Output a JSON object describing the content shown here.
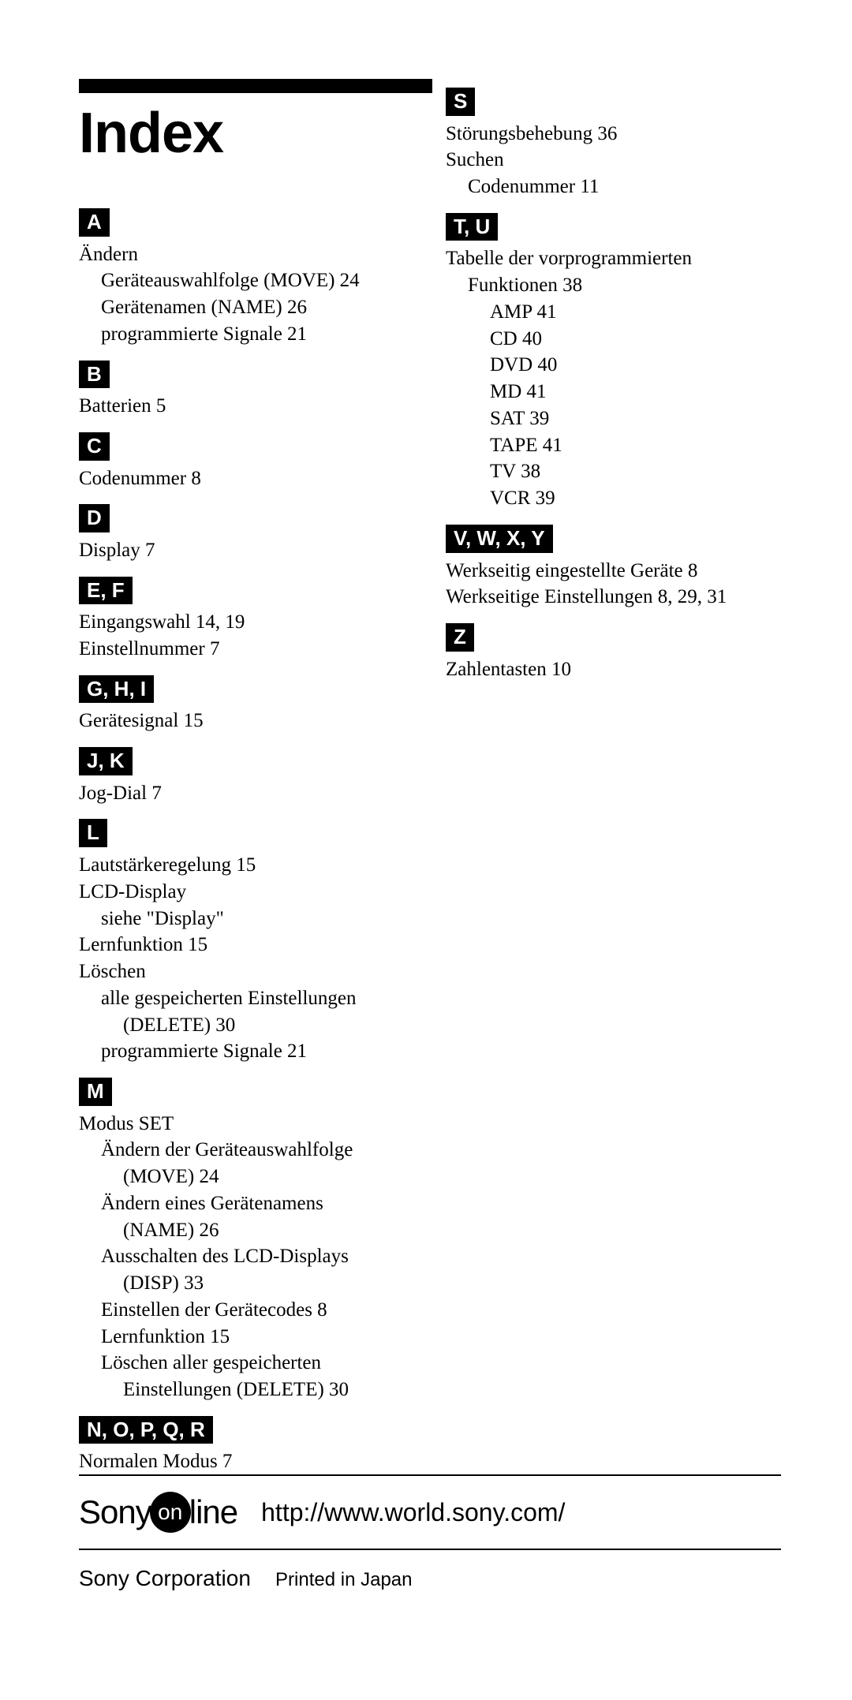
{
  "title": "Index",
  "left": {
    "A": {
      "label": "A",
      "items": [
        {
          "text": "Ändern",
          "indent": 0
        },
        {
          "text": "Geräteauswahlfolge (MOVE) 24",
          "indent": 1
        },
        {
          "text": "Gerätenamen (NAME) 26",
          "indent": 1
        },
        {
          "text": "programmierte Signale  21",
          "indent": 1
        }
      ]
    },
    "B": {
      "label": "B",
      "items": [
        {
          "text": "Batterien  5",
          "indent": 0
        }
      ]
    },
    "C": {
      "label": "C",
      "items": [
        {
          "text": "Codenummer 8",
          "indent": 0
        }
      ]
    },
    "D": {
      "label": "D",
      "items": [
        {
          "text": "Display 7",
          "indent": 0
        }
      ]
    },
    "EF": {
      "label": "E, F",
      "items": [
        {
          "text": "Eingangswahl  14, 19",
          "indent": 0
        },
        {
          "text": "Einstellnummer 7",
          "indent": 0
        }
      ]
    },
    "GHI": {
      "label": "G, H, I",
      "items": [
        {
          "text": "Gerätesignal 15",
          "indent": 0
        }
      ]
    },
    "JK": {
      "label": "J, K",
      "items": [
        {
          "text": "Jog-Dial 7",
          "indent": 0
        }
      ]
    },
    "L": {
      "label": "L",
      "items": [
        {
          "text": "Lautstärkeregelung  15",
          "indent": 0
        },
        {
          "text": "LCD-Display",
          "indent": 0
        },
        {
          "text": "siehe \"Display\"",
          "indent": 1
        },
        {
          "text": "Lernfunktion  15",
          "indent": 0
        },
        {
          "text": "Löschen",
          "indent": 0
        },
        {
          "text": "alle gespeicherten Einstellungen",
          "indent": 1
        },
        {
          "text": "(DELETE) 30",
          "indent": 2
        },
        {
          "text": "programmierte Signale  21",
          "indent": 1
        }
      ]
    },
    "M": {
      "label": "M",
      "items": [
        {
          "text": "Modus SET",
          "indent": 0
        },
        {
          "text": "Ändern der Geräteauswahlfolge",
          "indent": 1
        },
        {
          "text": "(MOVE) 24",
          "indent": 2
        },
        {
          "text": "Ändern eines Gerätenamens",
          "indent": 1
        },
        {
          "text": "(NAME) 26",
          "indent": 2
        },
        {
          "text": "Ausschalten des LCD-Displays",
          "indent": 1
        },
        {
          "text": "(DISP) 33",
          "indent": 2
        },
        {
          "text": "Einstellen der Gerätecodes 8",
          "indent": 1
        },
        {
          "text": "Lernfunktion 15",
          "indent": 1
        },
        {
          "text": "Löschen aller gespeicherten",
          "indent": 1
        },
        {
          "text": "Einstellungen (DELETE) 30",
          "indent": 2
        }
      ]
    },
    "NOPQR": {
      "label": "N, O, P, Q, R",
      "items": [
        {
          "text": "Normalen Modus 7",
          "indent": 0
        }
      ]
    }
  },
  "right": {
    "S": {
      "label": "S",
      "items": [
        {
          "text": "Störungsbehebung  36",
          "indent": 0
        },
        {
          "text": "Suchen",
          "indent": 0
        },
        {
          "text": "Codenummer 11",
          "indent": 1
        }
      ]
    },
    "TU": {
      "label": "T, U",
      "items": [
        {
          "text": "Tabelle der vorprogrammierten",
          "indent": 0
        },
        {
          "text": "Funktionen 38",
          "indent": 1
        },
        {
          "text": "AMP 41",
          "indent": 2
        },
        {
          "text": "CD 40",
          "indent": 2
        },
        {
          "text": "DVD 40",
          "indent": 2
        },
        {
          "text": "MD 41",
          "indent": 2
        },
        {
          "text": "SAT 39",
          "indent": 2
        },
        {
          "text": "TAPE 41",
          "indent": 2
        },
        {
          "text": "TV 38",
          "indent": 2
        },
        {
          "text": "VCR 39",
          "indent": 2
        }
      ]
    },
    "VWXY": {
      "label": "V, W, X, Y",
      "items": [
        {
          "text": "Werkseitig eingestellte Geräte  8",
          "indent": 0
        },
        {
          "text": "Werkseitige Einstellungen  8, 29, 31",
          "indent": 0
        }
      ]
    },
    "Z": {
      "label": "Z",
      "items": [
        {
          "text": "Zahlentasten  10",
          "indent": 0
        }
      ]
    }
  },
  "footer": {
    "sony": "Sony",
    "on": "on",
    "line": "line",
    "url": "http://www.world.sony.com/",
    "corp": "Sony Corporation",
    "printed": "Printed in Japan"
  }
}
